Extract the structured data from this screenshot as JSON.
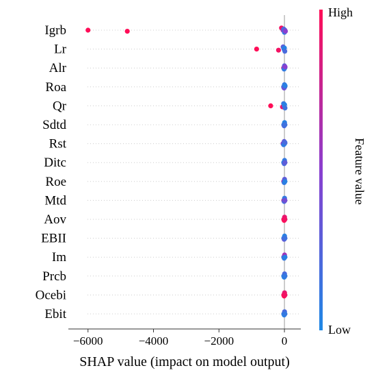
{
  "chart_data": {
    "type": "scatter",
    "subtype": "shap-beeswarm-summary",
    "features": [
      "Igrb",
      "Lr",
      "Alr",
      "Roa",
      "Qr",
      "Sdtd",
      "Rst",
      "Ditc",
      "Roe",
      "Mtd",
      "Aov",
      "EBII",
      "Im",
      "Prcb",
      "Ocebi",
      "Ebit"
    ],
    "xlabel": "SHAP value (impact on model output)",
    "xlim": [
      -6600,
      500
    ],
    "xticks": [
      -6000,
      -4000,
      -2000,
      0
    ],
    "xtick_labels": [
      "−6000",
      "−4000",
      "−2000",
      "0"
    ],
    "zero_line": 0,
    "colorbar": {
      "label": "Feature value",
      "high_label": "High",
      "low_label": "Low",
      "low_color": "#1E88E5",
      "high_color": "#FF0D57"
    },
    "series": [
      {
        "feature": "Igrb",
        "points": [
          {
            "x": -6000,
            "v": 1.0
          },
          {
            "x": -4800,
            "v": 1.0
          },
          {
            "x": -90,
            "v": 0.95
          },
          {
            "x": -45,
            "v": 0.6
          },
          {
            "x": -20,
            "v": 0.2
          },
          {
            "x": 0,
            "v": 0.1
          },
          {
            "x": 15,
            "v": 0.3
          },
          {
            "x": 30,
            "v": 0.5
          }
        ]
      },
      {
        "feature": "Lr",
        "points": [
          {
            "x": -850,
            "v": 1.0
          },
          {
            "x": -180,
            "v": 0.95
          },
          {
            "x": -40,
            "v": 0.3
          },
          {
            "x": -15,
            "v": 0.1
          },
          {
            "x": 0,
            "v": 0.05
          },
          {
            "x": 12,
            "v": 0.2
          }
        ]
      },
      {
        "feature": "Alr",
        "points": [
          {
            "x": -25,
            "v": 0.7
          },
          {
            "x": -10,
            "v": 0.1
          },
          {
            "x": 0,
            "v": 0.3
          },
          {
            "x": 10,
            "v": 0.05
          },
          {
            "x": 20,
            "v": 0.5
          }
        ]
      },
      {
        "feature": "Roa",
        "points": [
          {
            "x": -25,
            "v": 0.15
          },
          {
            "x": -10,
            "v": 0.4
          },
          {
            "x": 0,
            "v": 0.1
          },
          {
            "x": 10,
            "v": 0.3
          },
          {
            "x": 20,
            "v": 0.05
          }
        ]
      },
      {
        "feature": "Qr",
        "points": [
          {
            "x": -420,
            "v": 1.0
          },
          {
            "x": -60,
            "v": 0.9
          },
          {
            "x": -25,
            "v": 0.1
          },
          {
            "x": -8,
            "v": 0.2
          },
          {
            "x": 5,
            "v": 0.05
          },
          {
            "x": 18,
            "v": 0.15
          }
        ]
      },
      {
        "feature": "Sdtd",
        "points": [
          {
            "x": -22,
            "v": 0.1
          },
          {
            "x": -8,
            "v": 0.2
          },
          {
            "x": 4,
            "v": 0.05
          },
          {
            "x": 16,
            "v": 0.15
          }
        ]
      },
      {
        "feature": "Rst",
        "points": [
          {
            "x": -45,
            "v": 0.5
          },
          {
            "x": -25,
            "v": 0.1
          },
          {
            "x": -8,
            "v": 0.3
          },
          {
            "x": 5,
            "v": 0.05
          },
          {
            "x": 18,
            "v": 0.2
          }
        ]
      },
      {
        "feature": "Ditc",
        "points": [
          {
            "x": -22,
            "v": 0.05
          },
          {
            "x": -8,
            "v": 0.2
          },
          {
            "x": 4,
            "v": 0.1
          },
          {
            "x": 16,
            "v": 0.3
          }
        ]
      },
      {
        "feature": "Roe",
        "points": [
          {
            "x": -22,
            "v": 0.6
          },
          {
            "x": -8,
            "v": 0.1
          },
          {
            "x": 4,
            "v": 0.3
          },
          {
            "x": 16,
            "v": 0.05
          }
        ]
      },
      {
        "feature": "Mtd",
        "points": [
          {
            "x": -22,
            "v": 0.7
          },
          {
            "x": -8,
            "v": 0.2
          },
          {
            "x": 4,
            "v": 0.1
          },
          {
            "x": 16,
            "v": 0.4
          }
        ]
      },
      {
        "feature": "Aov",
        "points": [
          {
            "x": -22,
            "v": 0.95
          },
          {
            "x": -8,
            "v": 1.0
          },
          {
            "x": 4,
            "v": 0.9
          },
          {
            "x": 16,
            "v": 0.95
          }
        ]
      },
      {
        "feature": "EBII",
        "points": [
          {
            "x": -22,
            "v": 0.1
          },
          {
            "x": -8,
            "v": 0.3
          },
          {
            "x": 4,
            "v": 0.05
          },
          {
            "x": 16,
            "v": 0.15
          }
        ]
      },
      {
        "feature": "Im",
        "points": [
          {
            "x": -22,
            "v": 0.2
          },
          {
            "x": -8,
            "v": 0.1
          },
          {
            "x": 4,
            "v": 0.6
          },
          {
            "x": 16,
            "v": 0.05
          }
        ]
      },
      {
        "feature": "Prcb",
        "points": [
          {
            "x": -22,
            "v": 0.1
          },
          {
            "x": -8,
            "v": 0.05
          },
          {
            "x": 4,
            "v": 0.2
          },
          {
            "x": 16,
            "v": 0.1
          }
        ]
      },
      {
        "feature": "Ocebi",
        "points": [
          {
            "x": -22,
            "v": 0.95
          },
          {
            "x": -8,
            "v": 1.0
          },
          {
            "x": 4,
            "v": 0.9
          },
          {
            "x": 16,
            "v": 0.95
          }
        ]
      },
      {
        "feature": "Ebit",
        "points": [
          {
            "x": -22,
            "v": 0.1
          },
          {
            "x": -8,
            "v": 0.05
          },
          {
            "x": 4,
            "v": 0.2
          },
          {
            "x": 16,
            "v": 0.1
          }
        ]
      }
    ]
  }
}
